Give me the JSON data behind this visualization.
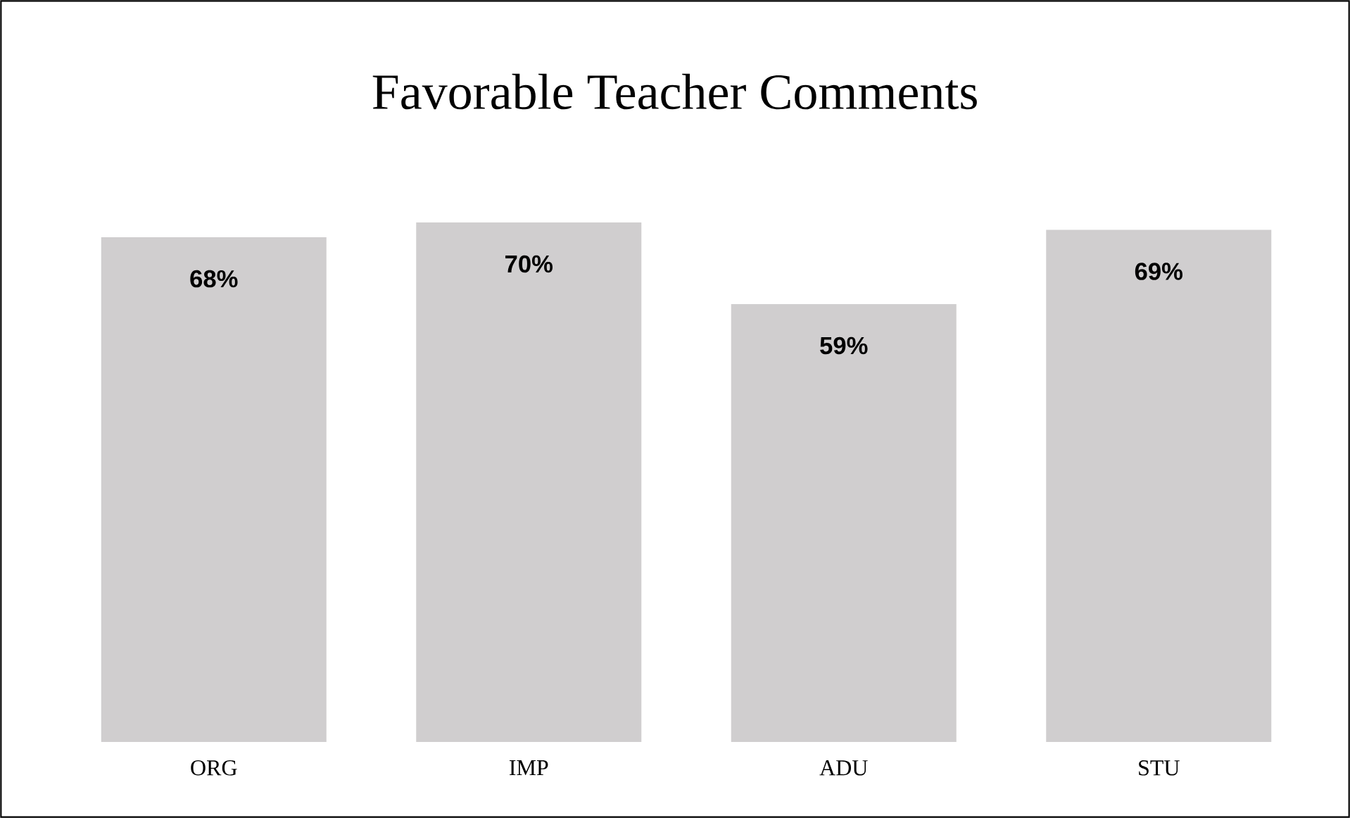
{
  "chart_data": {
    "type": "bar",
    "title": "Favorable Teacher Comments",
    "categories": [
      "ORG",
      "IMP",
      "ADU",
      "STU"
    ],
    "values": [
      68,
      70,
      59,
      69
    ],
    "value_labels": [
      "68%",
      "70%",
      "59%",
      "69%"
    ],
    "color": "#d0cecf",
    "tick_labels": "x"
  }
}
